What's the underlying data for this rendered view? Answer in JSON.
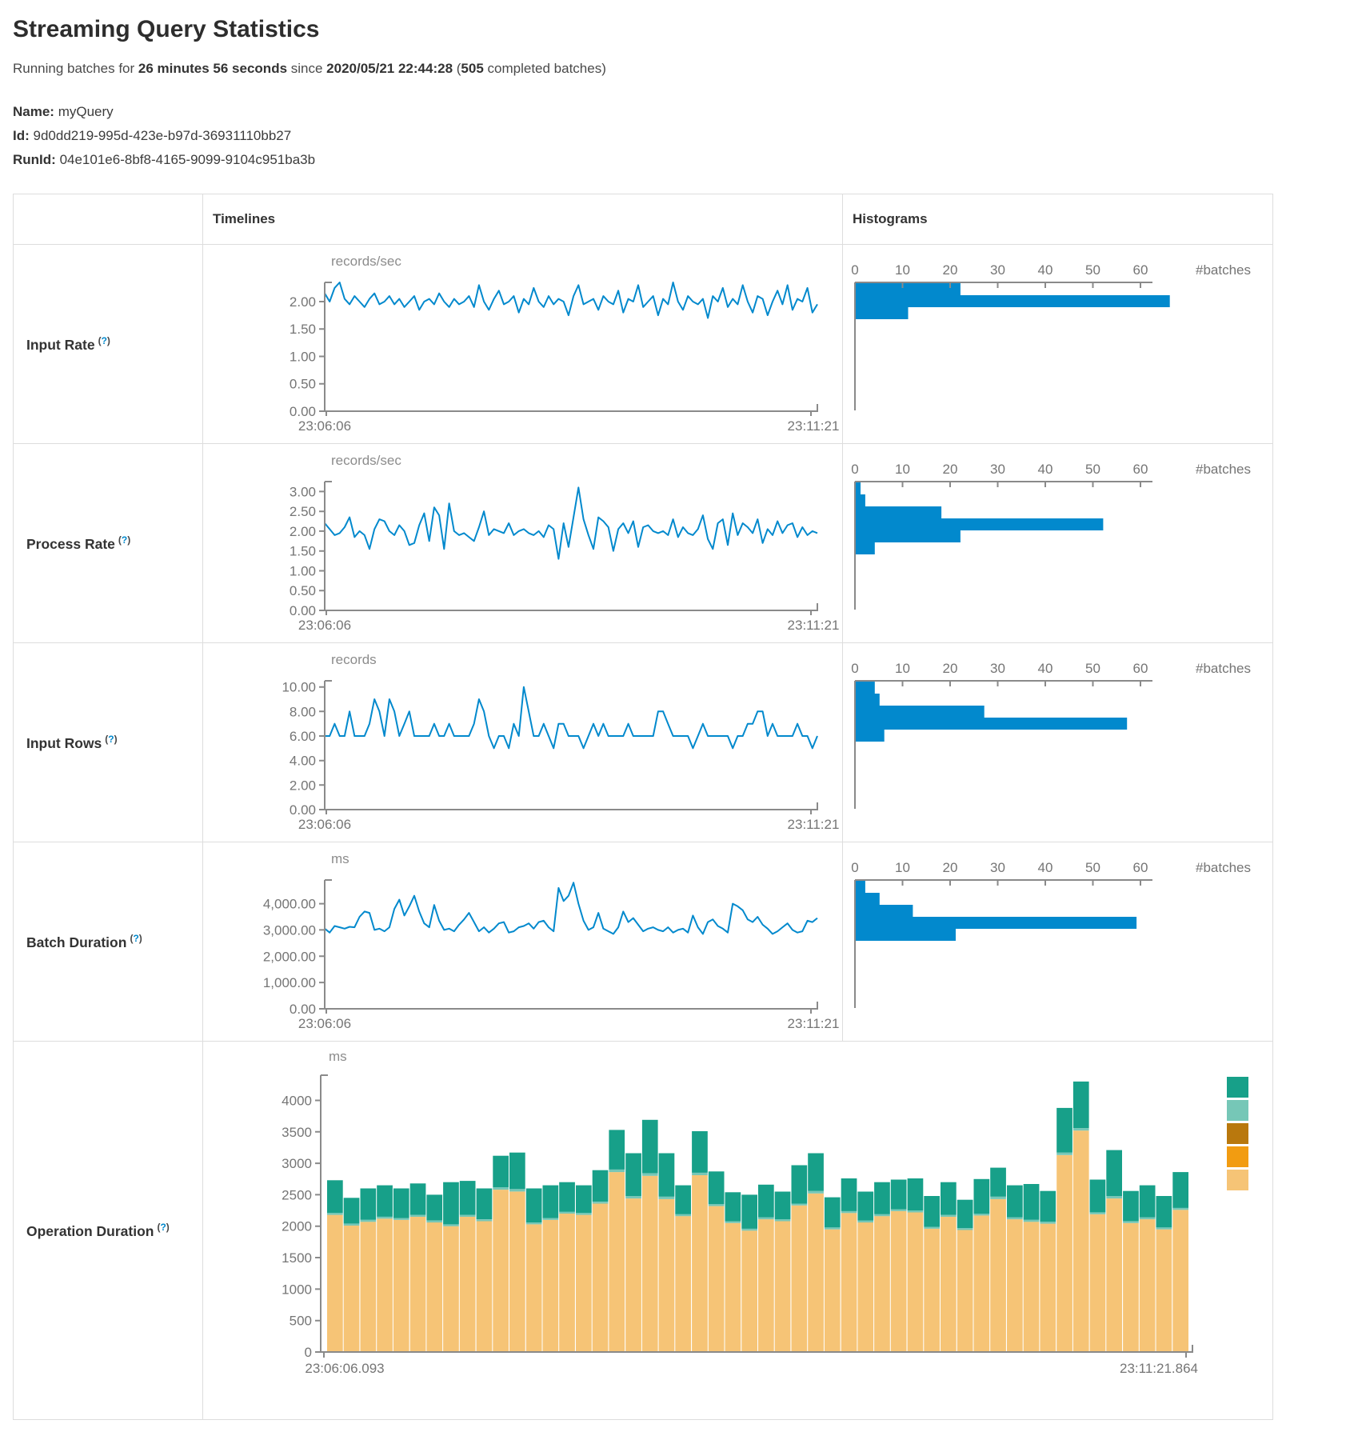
{
  "header": {
    "title": "Streaming Query Statistics",
    "running_prefix": "Running batches for ",
    "duration": "26 minutes 56 seconds",
    "since_word": " since ",
    "start_time": "2020/05/21 22:44:28",
    "open_paren": " (",
    "completed_count": "505",
    "completed_suffix": " completed batches)"
  },
  "query_info": {
    "name_label": "Name:",
    "name": "myQuery",
    "id_label": "Id:",
    "id": "9d0dd219-995d-423e-b97d-36931110bb27",
    "runid_label": "RunId:",
    "run_id": "04e101e6-8bf8-4165-9099-9104c951ba3b"
  },
  "table": {
    "columns": [
      "",
      "Timelines",
      "Histograms"
    ],
    "help_marker": {
      "open": "(",
      "q": "?",
      "close": ")"
    }
  },
  "colors": {
    "line_blue": "#0289cd",
    "hist_blue": "#0289cd",
    "axis_gray": "#8a8a8a",
    "tick_text": "#757575",
    "help_blue": "#0088cc",
    "table_border": "#dddddd",
    "legend": [
      "#17a089",
      "#76c7b7",
      "#b9780d",
      "#f29c11",
      "#f6c476"
    ]
  },
  "chart_data": [
    {
      "key": "input_rate",
      "row_label": "Input Rate",
      "type": "line",
      "unit": "records/sec",
      "x_start": "23:06:06",
      "x_end": "23:11:21",
      "y_ticks": [
        0,
        0.5,
        1,
        1.5,
        2
      ],
      "y_tick_format": "2dp",
      "y_max": 2.35,
      "values": [
        2.15,
        2.0,
        2.25,
        2.35,
        2.05,
        1.95,
        2.1,
        2.0,
        1.9,
        2.05,
        2.15,
        1.95,
        2.0,
        2.1,
        1.95,
        2.05,
        1.9,
        2.0,
        2.1,
        1.85,
        2.0,
        2.05,
        1.95,
        2.15,
        2.0,
        1.9,
        2.05,
        1.95,
        2.0,
        2.1,
        1.9,
        2.3,
        2.0,
        1.85,
        2.05,
        2.2,
        1.95,
        2.0,
        2.1,
        1.8,
        2.05,
        1.95,
        2.25,
        2.0,
        1.9,
        2.1,
        1.95,
        2.05,
        2.0,
        1.75,
        2.1,
        2.3,
        1.95,
        2.0,
        2.05,
        1.85,
        2.1,
        2.0,
        1.95,
        2.2,
        1.8,
        2.05,
        2.0,
        2.3,
        1.9,
        2.0,
        2.1,
        1.75,
        2.05,
        1.95,
        2.35,
        2.0,
        1.85,
        2.1,
        2.0,
        1.95,
        2.05,
        1.7,
        2.1,
        2.0,
        2.25,
        1.9,
        2.05,
        1.95,
        2.3,
        2.0,
        1.8,
        2.1,
        2.05,
        1.75,
        2.0,
        2.2,
        1.95,
        2.3,
        1.85,
        2.05,
        2.0,
        2.25,
        1.8,
        1.95
      ],
      "histogram": {
        "x_label": "#batches",
        "x_ticks": [
          0,
          10,
          20,
          30,
          40,
          50,
          60
        ],
        "bin_counts": [
          22,
          66,
          11
        ]
      }
    },
    {
      "key": "process_rate",
      "row_label": "Process Rate",
      "type": "line",
      "unit": "records/sec",
      "x_start": "23:06:06",
      "x_end": "23:11:21",
      "y_ticks": [
        0,
        0.5,
        1,
        1.5,
        2,
        2.5,
        3
      ],
      "y_tick_format": "2dp",
      "y_max": 3.25,
      "values": [
        2.2,
        2.05,
        1.9,
        1.95,
        2.1,
        2.35,
        1.85,
        2.0,
        1.9,
        1.55,
        2.05,
        2.3,
        2.25,
        2.0,
        1.9,
        2.15,
        2.0,
        1.65,
        1.7,
        2.15,
        2.45,
        1.75,
        2.6,
        2.4,
        1.55,
        2.7,
        2.0,
        1.9,
        1.95,
        1.85,
        1.75,
        2.1,
        2.5,
        1.9,
        2.05,
        2.0,
        1.95,
        2.2,
        1.9,
        2.0,
        2.05,
        1.95,
        1.9,
        2.0,
        1.85,
        2.15,
        2.05,
        1.3,
        2.2,
        1.6,
        2.35,
        3.1,
        2.3,
        1.9,
        1.55,
        2.35,
        2.25,
        2.1,
        1.5,
        2.05,
        2.2,
        1.95,
        2.25,
        1.6,
        2.1,
        2.15,
        2.0,
        1.95,
        2.0,
        1.9,
        2.3,
        1.85,
        2.1,
        1.95,
        1.9,
        2.05,
        2.4,
        1.8,
        1.55,
        2.2,
        2.3,
        1.65,
        2.45,
        1.9,
        2.2,
        2.1,
        1.95,
        2.3,
        1.7,
        2.05,
        1.9,
        2.25,
        1.95,
        2.15,
        2.2,
        1.85,
        2.1,
        1.9,
        2.0,
        1.95
      ],
      "histogram": {
        "x_label": "#batches",
        "x_ticks": [
          0,
          10,
          20,
          30,
          40,
          50,
          60
        ],
        "bin_counts": [
          1,
          2,
          18,
          52,
          22,
          4
        ]
      }
    },
    {
      "key": "input_rows",
      "row_label": "Input Rows",
      "type": "line",
      "unit": "records",
      "x_start": "23:06:06",
      "x_end": "23:11:21",
      "y_ticks": [
        0,
        2,
        4,
        6,
        8,
        10
      ],
      "y_tick_format": "2dp",
      "y_max": 10.5,
      "values": [
        6,
        6,
        7,
        6,
        6,
        8,
        6,
        6,
        6,
        7,
        9,
        8,
        6,
        9,
        8,
        6,
        7,
        8,
        6,
        6,
        6,
        6,
        7,
        6,
        6,
        7,
        6,
        6,
        6,
        6,
        7,
        9,
        8,
        6,
        5,
        6,
        6,
        5,
        7,
        6,
        10,
        8,
        6,
        6,
        7,
        6,
        5,
        7,
        7,
        6,
        6,
        6,
        5,
        6,
        7,
        6,
        7,
        6,
        6,
        6,
        6,
        7,
        6,
        6,
        6,
        6,
        6,
        8,
        8,
        7,
        6,
        6,
        6,
        6,
        5,
        6,
        7,
        6,
        6,
        6,
        6,
        6,
        5,
        6,
        6,
        7,
        7,
        8,
        8,
        6,
        7,
        6,
        6,
        6,
        6,
        7,
        6,
        6,
        5,
        6
      ],
      "histogram": {
        "x_label": "#batches",
        "x_ticks": [
          0,
          10,
          20,
          30,
          40,
          50,
          60
        ],
        "bin_counts": [
          4,
          5,
          27,
          57,
          6
        ]
      }
    },
    {
      "key": "batch_duration",
      "row_label": "Batch Duration",
      "type": "line",
      "unit": "ms",
      "x_start": "23:06:06",
      "x_end": "23:11:21",
      "y_ticks": [
        0,
        1000,
        2000,
        3000,
        4000
      ],
      "y_tick_format": "comma2dp",
      "y_max": 4900,
      "values": [
        3050,
        2900,
        3150,
        3100,
        3050,
        3120,
        3100,
        3500,
        3700,
        3650,
        3000,
        3050,
        2950,
        3100,
        3800,
        4150,
        3550,
        3900,
        4300,
        3700,
        3250,
        3100,
        3950,
        3350,
        3000,
        3050,
        2950,
        3200,
        3400,
        3650,
        3300,
        2950,
        3100,
        2900,
        3050,
        3250,
        3300,
        2900,
        2950,
        3100,
        3150,
        3250,
        3050,
        3300,
        3350,
        3100,
        2950,
        4600,
        4100,
        4300,
        4800,
        4000,
        3350,
        3000,
        3100,
        3650,
        3050,
        2950,
        2850,
        3100,
        3700,
        3300,
        3450,
        3200,
        2950,
        3050,
        3100,
        3000,
        2950,
        3100,
        2900,
        3000,
        3050,
        2900,
        3550,
        3100,
        2850,
        3300,
        3400,
        3150,
        3050,
        2900,
        4000,
        3900,
        3750,
        3400,
        3300,
        3500,
        3200,
        3050,
        2850,
        2950,
        3100,
        3250,
        3000,
        2900,
        2950,
        3350,
        3300,
        3450
      ],
      "histogram": {
        "x_label": "#batches",
        "x_ticks": [
          0,
          10,
          20,
          30,
          40,
          50,
          60
        ],
        "bin_counts": [
          2,
          5,
          12,
          59,
          21
        ]
      }
    },
    {
      "key": "operation_duration",
      "row_label": "Operation Duration",
      "type": "stacked-bar",
      "unit": "ms",
      "x_start": "23:06:06.093",
      "x_end": "23:11:21.864",
      "y_ticks": [
        0,
        500,
        1000,
        1500,
        2000,
        2500,
        3000,
        3500,
        4000
      ],
      "y_tick_format": "int",
      "y_max": 4400,
      "legend_colors": [
        "#17a089",
        "#76c7b7",
        "#b9780d",
        "#f29c11",
        "#f6c476"
      ],
      "stack_bottom_to_top": [
        {
          "color": "#f6c476",
          "values": [
            2180,
            2010,
            2070,
            2120,
            2100,
            2150,
            2060,
            2000,
            2150,
            2080,
            2580,
            2550,
            2030,
            2100,
            2200,
            2180,
            2360,
            2860,
            2440,
            2800,
            2430,
            2160,
            2810,
            2320,
            2050,
            1930,
            2110,
            2080,
            2330,
            2520,
            1950,
            2210,
            2060,
            2160,
            2240,
            2220,
            1960,
            2150,
            1940,
            2170,
            2430,
            2110,
            2070,
            2040,
            3130,
            3520,
            2190,
            2440,
            2050,
            2110,
            1950,
            2260
          ]
        },
        {
          "color": "#76c7b7",
          "values": [
            30,
            30,
            30,
            30,
            30,
            30,
            30,
            30,
            30,
            30,
            40,
            40,
            30,
            30,
            30,
            30,
            30,
            40,
            40,
            40,
            40,
            30,
            40,
            30,
            30,
            30,
            30,
            30,
            30,
            40,
            30,
            30,
            30,
            30,
            30,
            30,
            30,
            30,
            30,
            30,
            40,
            30,
            30,
            30,
            40,
            40,
            30,
            40,
            30,
            30,
            30,
            30
          ]
        },
        {
          "color": "#17a089",
          "values": [
            520,
            410,
            500,
            500,
            470,
            500,
            410,
            670,
            540,
            490,
            500,
            580,
            540,
            520,
            470,
            440,
            500,
            630,
            680,
            850,
            690,
            460,
            660,
            520,
            460,
            540,
            520,
            440,
            610,
            600,
            480,
            520,
            460,
            510,
            470,
            510,
            490,
            520,
            450,
            550,
            460,
            510,
            570,
            490,
            710,
            740,
            520,
            730,
            480,
            510,
            500,
            570
          ]
        }
      ]
    }
  ]
}
